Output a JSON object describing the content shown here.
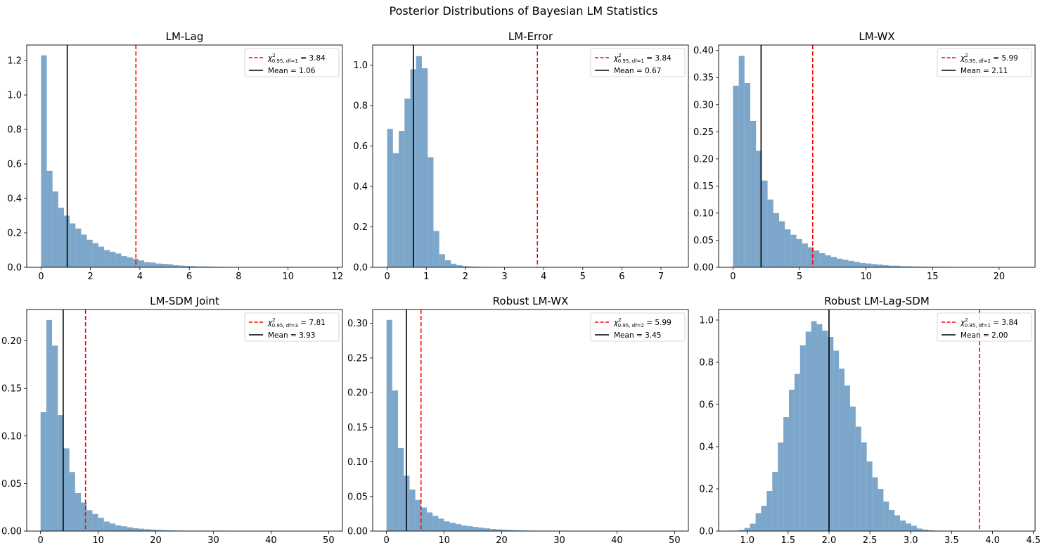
{
  "suptitle": "Posterior Distributions of Bayesian LM Statistics",
  "colors": {
    "hist": "#4682b4",
    "critical": "#ff0000",
    "mean": "#000000"
  },
  "chart_data": [
    {
      "type": "histogram",
      "title": "LM-Lag",
      "xlim": [
        -0.58,
        12.2
      ],
      "ylim": [
        0,
        1.29
      ],
      "xticks": [
        0,
        2,
        4,
        6,
        8,
        10,
        12
      ],
      "yticks": [
        0.0,
        0.2,
        0.4,
        0.6,
        0.8,
        1.0,
        1.2
      ],
      "ytick_labels": [
        "0.0",
        "0.2",
        "0.4",
        "0.6",
        "0.8",
        "1.0",
        "1.2"
      ],
      "bin_start": 0.0,
      "bin_width": 0.232,
      "densities": [
        1.23,
        0.56,
        0.44,
        0.345,
        0.3,
        0.255,
        0.225,
        0.19,
        0.16,
        0.14,
        0.12,
        0.1,
        0.09,
        0.08,
        0.065,
        0.058,
        0.05,
        0.04,
        0.03,
        0.028,
        0.022,
        0.02,
        0.018,
        0.012,
        0.01,
        0.008,
        0.007,
        0.005,
        0.005,
        0.004,
        0.003,
        0.003,
        0.002,
        0.002,
        0.001,
        0.001,
        0.001,
        0.001,
        0.001,
        0.0005,
        0.0005,
        0.0005,
        0.0005,
        0.0005,
        0.0004,
        0.0003,
        0.0003,
        0.0002,
        0.0002,
        0.0001
      ],
      "critical": 3.84,
      "mean": 1.06,
      "legend": {
        "critical_sub": "0.95, df=1",
        "critical_value": "= 3.84",
        "mean_label": "Mean = 1.06"
      }
    },
    {
      "type": "histogram",
      "title": "LM-Error",
      "xlim": [
        -0.37,
        7.7
      ],
      "ylim": [
        0,
        1.1
      ],
      "xticks": [
        0,
        1,
        2,
        3,
        4,
        5,
        6,
        7
      ],
      "yticks": [
        0.0,
        0.2,
        0.4,
        0.6,
        0.8,
        1.0
      ],
      "ytick_labels": [
        "0.0",
        "0.2",
        "0.4",
        "0.6",
        "0.8",
        "1.0"
      ],
      "bin_start": 0.0,
      "bin_width": 0.148,
      "densities": [
        0.685,
        0.565,
        0.675,
        0.835,
        0.98,
        1.045,
        0.985,
        0.545,
        0.18,
        0.065,
        0.035,
        0.018,
        0.01,
        0.006,
        0.004,
        0.003,
        0.002,
        0.002,
        0.001,
        0.001,
        0.001,
        0.001,
        0.0005,
        0.0005,
        0.0005
      ],
      "critical": 3.84,
      "mean": 0.67,
      "legend": {
        "critical_sub": "0.95, df=1",
        "critical_value": "= 3.84",
        "mean_label": "Mean = 0.67"
      }
    },
    {
      "type": "histogram",
      "title": "LM-WX",
      "xlim": [
        -1.08,
        22.7
      ],
      "ylim": [
        0,
        0.41
      ],
      "xticks": [
        0,
        5,
        10,
        15,
        20
      ],
      "yticks": [
        0.0,
        0.05,
        0.1,
        0.15,
        0.2,
        0.25,
        0.3,
        0.35,
        0.4
      ],
      "ytick_labels": [
        "0.00",
        "0.05",
        "0.10",
        "0.15",
        "0.20",
        "0.25",
        "0.30",
        "0.35",
        "0.40"
      ],
      "bin_start": 0.0,
      "bin_width": 0.433,
      "densities": [
        0.335,
        0.39,
        0.34,
        0.27,
        0.215,
        0.16,
        0.125,
        0.1,
        0.085,
        0.07,
        0.06,
        0.052,
        0.044,
        0.037,
        0.031,
        0.026,
        0.022,
        0.019,
        0.016,
        0.014,
        0.012,
        0.01,
        0.008,
        0.007,
        0.006,
        0.005,
        0.004,
        0.003,
        0.003,
        0.002,
        0.002,
        0.0015,
        0.0013,
        0.001,
        0.001,
        0.0009,
        0.0008,
        0.0006,
        0.0005,
        0.0004,
        0.0004,
        0.0003,
        0.0003,
        0.0002,
        0.0002,
        0.0002,
        0.0001,
        0.0001,
        0.0001,
        0.0001
      ],
      "critical": 5.99,
      "mean": 2.11,
      "legend": {
        "critical_sub": "0.95, df=2",
        "critical_value": "= 5.99",
        "mean_label": "Mean = 2.11"
      }
    },
    {
      "type": "histogram",
      "title": "LM-SDM Joint",
      "xlim": [
        -2.4,
        52.4
      ],
      "ylim": [
        0,
        0.233
      ],
      "xticks": [
        0,
        10,
        20,
        30,
        40,
        50
      ],
      "yticks": [
        0.0,
        0.05,
        0.1,
        0.15,
        0.2
      ],
      "ytick_labels": [
        "0.00",
        "0.05",
        "0.10",
        "0.15",
        "0.20"
      ],
      "bin_start": 0.0,
      "bin_width": 1.0,
      "densities": [
        0.125,
        0.222,
        0.195,
        0.122,
        0.087,
        0.062,
        0.04,
        0.03,
        0.022,
        0.018,
        0.014,
        0.01,
        0.008,
        0.006,
        0.005,
        0.004,
        0.003,
        0.0025,
        0.002,
        0.0016,
        0.0013,
        0.001,
        0.0008,
        0.0006,
        0.0005,
        0.0004,
        0.0003,
        0.0003,
        0.0002,
        0.0002,
        0.0001,
        0.0001
      ],
      "critical": 7.81,
      "mean": 3.93,
      "legend": {
        "critical_sub": "0.95, df=3",
        "critical_value": "= 7.81",
        "mean_label": "Mean = 3.93"
      }
    },
    {
      "type": "histogram",
      "title": "Robust LM-WX",
      "xlim": [
        -2.4,
        52.4
      ],
      "ylim": [
        0,
        0.32
      ],
      "xticks": [
        0,
        10,
        20,
        30,
        40,
        50
      ],
      "yticks": [
        0.0,
        0.05,
        0.1,
        0.15,
        0.2,
        0.25,
        0.3
      ],
      "ytick_labels": [
        "0.00",
        "0.05",
        "0.10",
        "0.15",
        "0.20",
        "0.25",
        "0.30"
      ],
      "bin_start": 0.0,
      "bin_width": 1.0,
      "densities": [
        0.305,
        0.203,
        0.12,
        0.08,
        0.06,
        0.045,
        0.034,
        0.027,
        0.022,
        0.018,
        0.014,
        0.012,
        0.01,
        0.008,
        0.007,
        0.006,
        0.005,
        0.004,
        0.003,
        0.0025,
        0.002,
        0.0016,
        0.0013,
        0.001,
        0.0008,
        0.0006,
        0.0005,
        0.0004,
        0.0003,
        0.0002,
        0.0002,
        0.0001,
        0.0001,
        0.0001
      ],
      "critical": 5.99,
      "mean": 3.45,
      "legend": {
        "critical_sub": "0.95, df=2",
        "critical_value": "= 5.99",
        "mean_label": "Mean = 3.45"
      }
    },
    {
      "type": "histogram",
      "title": "Robust LM-Lag-SDM",
      "xlim": [
        0.65,
        4.52
      ],
      "ylim": [
        0,
        1.05
      ],
      "xticks": [
        1.0,
        1.5,
        2.0,
        2.5,
        3.0,
        3.5,
        4.0,
        4.5
      ],
      "xtick_labels": [
        "1.0",
        "1.5",
        "2.0",
        "2.5",
        "3.0",
        "3.5",
        "4.0",
        "4.5"
      ],
      "yticks": [
        0.0,
        0.2,
        0.4,
        0.6,
        0.8,
        1.0
      ],
      "ytick_labels": [
        "0.0",
        "0.2",
        "0.4",
        "0.6",
        "0.8",
        "1.0"
      ],
      "bin_start": 0.83,
      "bin_width": 0.068,
      "densities": [
        0.002,
        0.005,
        0.015,
        0.035,
        0.085,
        0.12,
        0.19,
        0.28,
        0.42,
        0.54,
        0.67,
        0.745,
        0.88,
        0.945,
        0.995,
        0.98,
        0.95,
        0.92,
        0.855,
        0.77,
        0.69,
        0.59,
        0.495,
        0.42,
        0.33,
        0.255,
        0.2,
        0.14,
        0.1,
        0.075,
        0.05,
        0.036,
        0.025,
        0.012,
        0.007,
        0.004,
        0.002,
        0.001,
        0.001
      ],
      "critical": 3.84,
      "mean": 2.0,
      "legend": {
        "critical_sub": "0.95, df=1",
        "critical_value": "= 3.84",
        "mean_label": "Mean = 2.00"
      }
    }
  ]
}
